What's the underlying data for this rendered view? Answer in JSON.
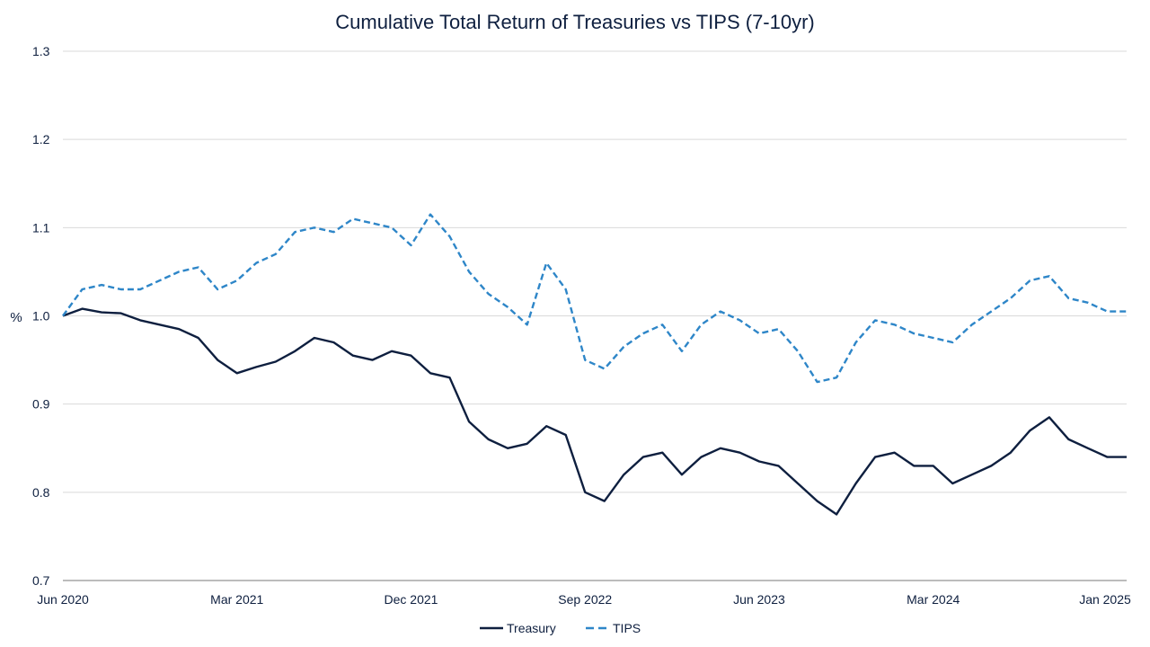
{
  "chart_data": {
    "type": "line",
    "title": "Cumulative Total Return of Treasuries vs TIPS (7-10yr)",
    "ylabel": "%",
    "xlabel": "",
    "ylim": [
      0.7,
      1.3
    ],
    "y_ticks": [
      0.7,
      0.8,
      0.9,
      1.0,
      1.1,
      1.2,
      1.3
    ],
    "y_tick_labels": [
      "0.7",
      "0.8",
      "0.9",
      "1.0",
      "1.1",
      "1.2",
      "1.3"
    ],
    "xlim": [
      "2020-06",
      "2025-01"
    ],
    "x_tick_labels": [
      {
        "label": "Jun 2020",
        "date": "2020-06"
      },
      {
        "label": "Mar 2021",
        "date": "2021-03"
      },
      {
        "label": "Dec 2021",
        "date": "2021-12"
      },
      {
        "label": "Sep 2022",
        "date": "2022-09"
      },
      {
        "label": "Jun 2023",
        "date": "2023-06"
      },
      {
        "label": "Mar 2024",
        "date": "2024-03"
      },
      {
        "label": "Jan 2025",
        "date": "2025-01"
      }
    ],
    "grid": "horizontal",
    "legend_position": "bottom-center",
    "series": [
      {
        "name": "Treasury",
        "color": "#0e1f3f",
        "style": "solid",
        "x": [
          "2020-06",
          "2020-07",
          "2020-08",
          "2020-09",
          "2020-10",
          "2020-11",
          "2020-12",
          "2021-01",
          "2021-02",
          "2021-03",
          "2021-04",
          "2021-05",
          "2021-06",
          "2021-07",
          "2021-08",
          "2021-09",
          "2021-10",
          "2021-11",
          "2021-12",
          "2022-01",
          "2022-02",
          "2022-03",
          "2022-04",
          "2022-05",
          "2022-06",
          "2022-07",
          "2022-08",
          "2022-09",
          "2022-10",
          "2022-11",
          "2022-12",
          "2023-01",
          "2023-02",
          "2023-03",
          "2023-04",
          "2023-05",
          "2023-06",
          "2023-07",
          "2023-08",
          "2023-09",
          "2023-10",
          "2023-11",
          "2023-12",
          "2024-01",
          "2024-02",
          "2024-03",
          "2024-04",
          "2024-05",
          "2024-06",
          "2024-07",
          "2024-08",
          "2024-09",
          "2024-10",
          "2024-11",
          "2024-12",
          "2025-01"
        ],
        "values": [
          1.0,
          1.008,
          1.004,
          1.003,
          0.995,
          0.99,
          0.985,
          0.975,
          0.95,
          0.935,
          0.942,
          0.948,
          0.96,
          0.975,
          0.97,
          0.955,
          0.95,
          0.96,
          0.955,
          0.935,
          0.93,
          0.88,
          0.86,
          0.85,
          0.855,
          0.875,
          0.865,
          0.8,
          0.79,
          0.82,
          0.84,
          0.845,
          0.82,
          0.84,
          0.85,
          0.845,
          0.835,
          0.83,
          0.81,
          0.79,
          0.775,
          0.81,
          0.84,
          0.845,
          0.83,
          0.83,
          0.81,
          0.82,
          0.83,
          0.845,
          0.87,
          0.885,
          0.86,
          0.85,
          0.84,
          0.84
        ]
      },
      {
        "name": "TIPS",
        "color": "#2e86c8",
        "style": "dashed",
        "x": [
          "2020-06",
          "2020-07",
          "2020-08",
          "2020-09",
          "2020-10",
          "2020-11",
          "2020-12",
          "2021-01",
          "2021-02",
          "2021-03",
          "2021-04",
          "2021-05",
          "2021-06",
          "2021-07",
          "2021-08",
          "2021-09",
          "2021-10",
          "2021-11",
          "2021-12",
          "2022-01",
          "2022-02",
          "2022-03",
          "2022-04",
          "2022-05",
          "2022-06",
          "2022-07",
          "2022-08",
          "2022-09",
          "2022-10",
          "2022-11",
          "2022-12",
          "2023-01",
          "2023-02",
          "2023-03",
          "2023-04",
          "2023-05",
          "2023-06",
          "2023-07",
          "2023-08",
          "2023-09",
          "2023-10",
          "2023-11",
          "2023-12",
          "2024-01",
          "2024-02",
          "2024-03",
          "2024-04",
          "2024-05",
          "2024-06",
          "2024-07",
          "2024-08",
          "2024-09",
          "2024-10",
          "2024-11",
          "2024-12",
          "2025-01"
        ],
        "values": [
          1.0,
          1.03,
          1.035,
          1.03,
          1.03,
          1.04,
          1.05,
          1.055,
          1.03,
          1.04,
          1.06,
          1.07,
          1.095,
          1.1,
          1.095,
          1.11,
          1.105,
          1.1,
          1.08,
          1.115,
          1.09,
          1.05,
          1.025,
          1.01,
          0.99,
          1.06,
          1.03,
          0.95,
          0.94,
          0.965,
          0.98,
          0.99,
          0.96,
          0.99,
          1.005,
          0.995,
          0.98,
          0.985,
          0.96,
          0.925,
          0.93,
          0.97,
          0.995,
          0.99,
          0.98,
          0.975,
          0.97,
          0.99,
          1.005,
          1.02,
          1.04,
          1.045,
          1.02,
          1.015,
          1.005,
          1.005
        ]
      }
    ]
  }
}
